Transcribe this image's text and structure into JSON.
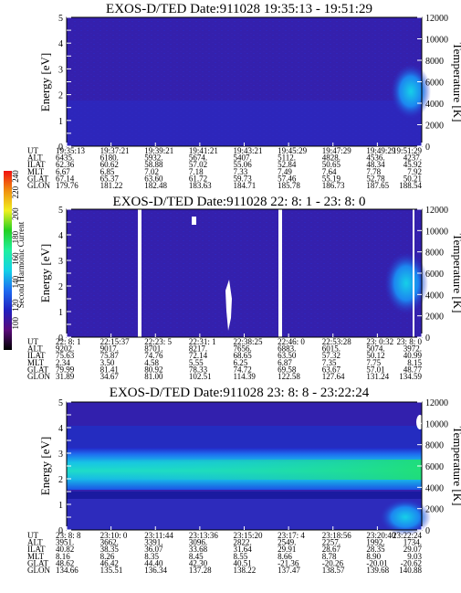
{
  "chart_data": [
    {
      "type": "heatmap",
      "title": "EXOS-D/TED  Date:911028  19:35:13 - 19:51:29",
      "ylabel": "Energy [eV]",
      "ylim": [
        0,
        5
      ],
      "yticks": [
        "0",
        "0.5",
        "1",
        "1.5",
        "2",
        "2.5",
        "3",
        "3.5",
        "4",
        "4.5",
        "5"
      ],
      "y2label": "Temperature [K]",
      "y2lim": [
        0,
        12000
      ],
      "y2ticks": [
        "0",
        "2000",
        "4000",
        "6000",
        "8000",
        "10000",
        "12000"
      ],
      "color_scale": [
        100,
        240
      ],
      "ephemeris_labels": [
        "UT",
        "ALT",
        "ILAT",
        "MLT",
        "GLAT",
        "GLON"
      ],
      "ephemeris": [
        [
          "19:35:13",
          "6435.",
          "62.36",
          "6.67",
          "67.14",
          "179.76"
        ],
        [
          "19:37:21",
          "6180.",
          "60.62",
          "6.85",
          "65.37",
          "181.22"
        ],
        [
          "19:39:21",
          "5932.",
          "58.88",
          "7.02",
          "63.60",
          "182.48"
        ],
        [
          "19:41:21",
          "5674.",
          "57.02",
          "7.18",
          "61.72",
          "183.63"
        ],
        [
          "19:43:21",
          "5407.",
          "55.06",
          "7.33",
          "59.73",
          "184.71"
        ],
        [
          "19:45:29",
          "5112.",
          "52.84",
          "7.49",
          "57.46",
          "185.78"
        ],
        [
          "19:47:29",
          "4828.",
          "50.65",
          "7.64",
          "55.19",
          "186.73"
        ],
        [
          "19:49:29",
          "4536.",
          "48.34",
          "7.78",
          "52.78",
          "187.65"
        ],
        [
          "19:51:29",
          "4237.",
          "45.92",
          "7.92",
          "50.21",
          "188.54"
        ]
      ]
    },
    {
      "type": "heatmap",
      "title": "EXOS-D/TED  Date:911028  22: 8: 1 - 23: 8: 0",
      "ylabel": "Energy [eV]",
      "ylim": [
        0,
        5
      ],
      "yticks": [
        "0",
        "0.5",
        "1",
        "1.5",
        "2",
        "2.5",
        "3",
        "3.5",
        "4",
        "4.5",
        "5"
      ],
      "y2label": "Temperature [K]",
      "y2lim": [
        0,
        12000
      ],
      "y2ticks": [
        "0",
        "2000",
        "4000",
        "6000",
        "8000",
        "10000",
        "12000"
      ],
      "color_scale": [
        100,
        240
      ],
      "ephemeris_labels": [
        "UT",
        "ALT",
        "ILAT",
        "MLT",
        "GLAT",
        "GLON"
      ],
      "ephemeris": [
        [
          "22: 8: 1",
          "9202.",
          "75.63",
          "2.34",
          "79.99",
          "31.89"
        ],
        [
          "22:15:37",
          "9017.",
          "75.87",
          "3.50",
          "81.41",
          "34.67"
        ],
        [
          "22:23: 5",
          "8701.",
          "74.76",
          "4.58",
          "80.92",
          "81.00"
        ],
        [
          "22:31: 1",
          "8217.",
          "72.14",
          "5.55",
          "78.33",
          "102.51"
        ],
        [
          "22:38:25",
          "7656.",
          "68.65",
          "6.25",
          "74.72",
          "114.39"
        ],
        [
          "22:46: 0",
          "6883.",
          "63.50",
          "6.87",
          "69.58",
          "122.58"
        ],
        [
          "22:53:28",
          "6015.",
          "57.32",
          "7.35",
          "63.67",
          "127.64"
        ],
        [
          "23: 0:32",
          "5074.",
          "50.12",
          "7.75",
          "57.01",
          "131.24"
        ],
        [
          "23: 8: 0",
          "3972.",
          "40.99",
          "8.15",
          "48.77",
          "134.59"
        ]
      ]
    },
    {
      "type": "heatmap",
      "title": "EXOS-D/TED  Date:911028  23: 8: 8 - 23:22:24",
      "ylabel": "Energy [eV]",
      "ylim": [
        0,
        5
      ],
      "yticks": [
        "0",
        "0.5",
        "1",
        "1.5",
        "2",
        "2.5",
        "3",
        "3.5",
        "4",
        "4.5",
        "5"
      ],
      "y2label": "Temperature [K]",
      "y2lim": [
        0,
        12000
      ],
      "y2ticks": [
        "0",
        "2000",
        "4000",
        "6000",
        "8000",
        "10000",
        "12000"
      ],
      "color_scale": [
        100,
        240
      ],
      "ephemeris_labels": [
        "UT",
        "ALT",
        "ILAT",
        "MLT",
        "GLAT",
        "GLON"
      ],
      "ephemeris": [
        [
          "23: 8: 8",
          "3951.",
          "40.82",
          "8.16",
          "48.62",
          "134.66"
        ],
        [
          "23:10: 0",
          "3662.",
          "38.35",
          "8.26",
          "46.42",
          "135.51"
        ],
        [
          "23:11:44",
          "3391.",
          "36.07",
          "8.35",
          "44.40",
          "136.34"
        ],
        [
          "23:13:36",
          "3096.",
          "33.68",
          "8.45",
          "42.30",
          "137.28"
        ],
        [
          "23:15:20",
          "2822.",
          "31.64",
          "8.55",
          "40.51",
          "138.22"
        ],
        [
          "23:17: 4",
          "2549.",
          "29.91",
          "8.66",
          "-21.36",
          "137.47"
        ],
        [
          "23:18:56",
          "2257.",
          "28.67",
          "8.78",
          "-20.26",
          "138.57"
        ],
        [
          "23:20:40",
          "1992.",
          "28.35",
          "8.90",
          "-20.01",
          "139.68"
        ],
        [
          "23:22:24",
          "1734.",
          "29.07",
          "9.03",
          "-20.62",
          "140.88"
        ]
      ]
    }
  ],
  "colorbar": {
    "label": "Second Harmonic Current",
    "ticks": [
      "100",
      "120",
      "140",
      "160",
      "180",
      "200",
      "220",
      "240"
    ],
    "colors": [
      "#000000",
      "#5a0a7a",
      "#2020c0",
      "#1e6cf0",
      "#12d2e6",
      "#20f0a0",
      "#22d022",
      "#f0f020",
      "#f09010",
      "#f01010"
    ]
  }
}
